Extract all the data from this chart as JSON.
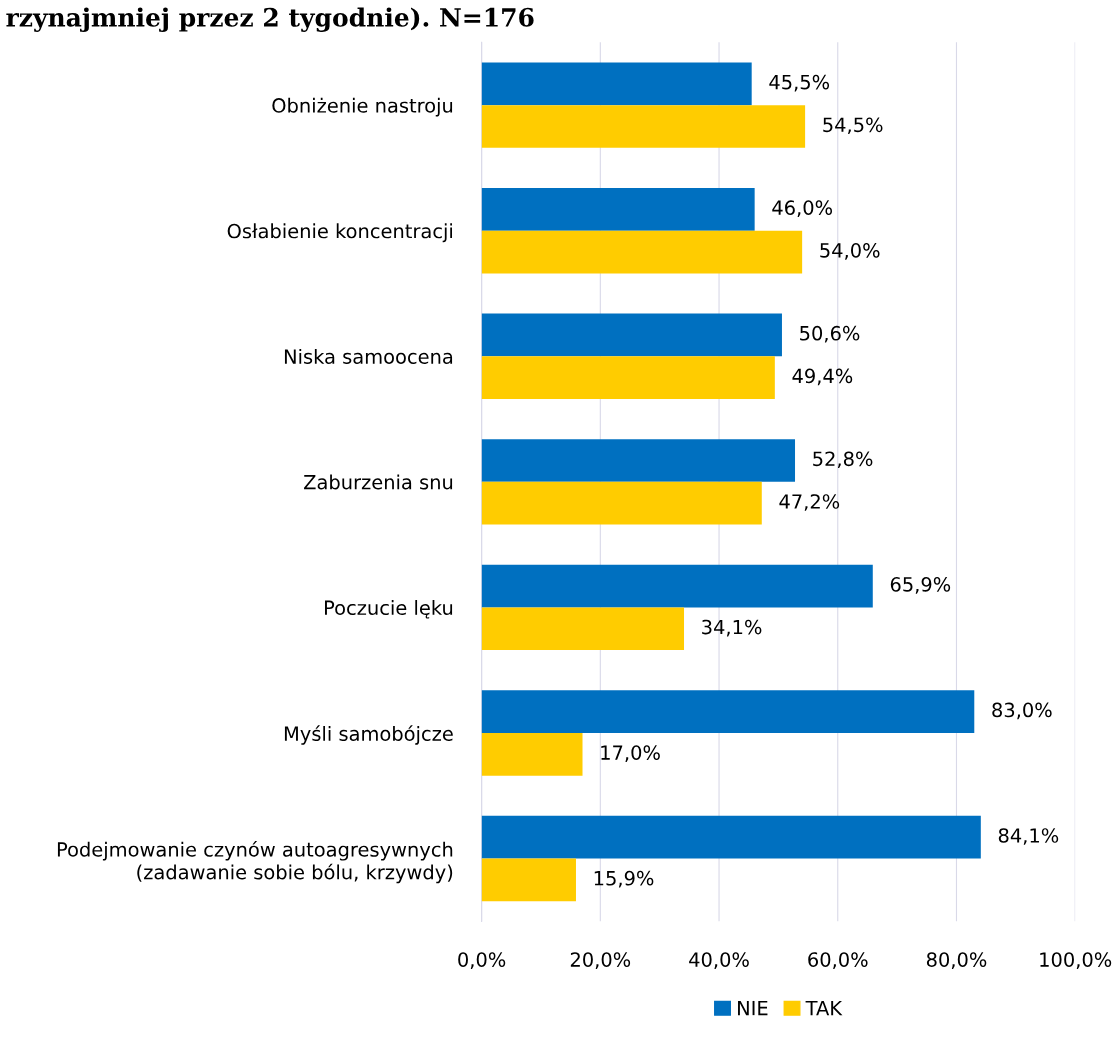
{
  "chart_data": {
    "type": "bar",
    "orientation": "horizontal",
    "title": "rzynajmniej przez 2 tygodnie). N=176",
    "categories": [
      "Obniżenie nastroju",
      "Osłabienie koncentracji",
      "Niska samoocena",
      "Zaburzenia snu",
      "Poczucie lęku",
      "Myśli samobójcze",
      "Podejmowanie czynów autoagresywnych\n(zadawanie sobie bólu, krzywdy)"
    ],
    "series": [
      {
        "name": "NIE",
        "color": "#0070c0",
        "values": [
          45.5,
          46.0,
          50.6,
          52.8,
          65.9,
          83.0,
          84.1
        ],
        "value_labels": [
          "45,5%",
          "46,0%",
          "50,6%",
          "52,8%",
          "65,9%",
          "83,0%",
          "84,1%"
        ]
      },
      {
        "name": "TAK",
        "color": "#ffcc00",
        "values": [
          54.5,
          54.0,
          49.4,
          47.2,
          34.1,
          17.0,
          15.9
        ],
        "value_labels": [
          "54,5%",
          "54,0%",
          "49,4%",
          "47,2%",
          "34,1%",
          "17,0%",
          "15,9%"
        ]
      }
    ],
    "xlim": [
      0,
      100
    ],
    "xticks": [
      {
        "value": 0,
        "label": "0,0%"
      },
      {
        "value": 20,
        "label": "20,0%"
      },
      {
        "value": 40,
        "label": "40,0%"
      },
      {
        "value": 60,
        "label": "60,0%"
      },
      {
        "value": 80,
        "label": "80,0%"
      },
      {
        "value": 100,
        "label": "100,0%"
      }
    ],
    "grid": "x",
    "legend": "bottom"
  }
}
